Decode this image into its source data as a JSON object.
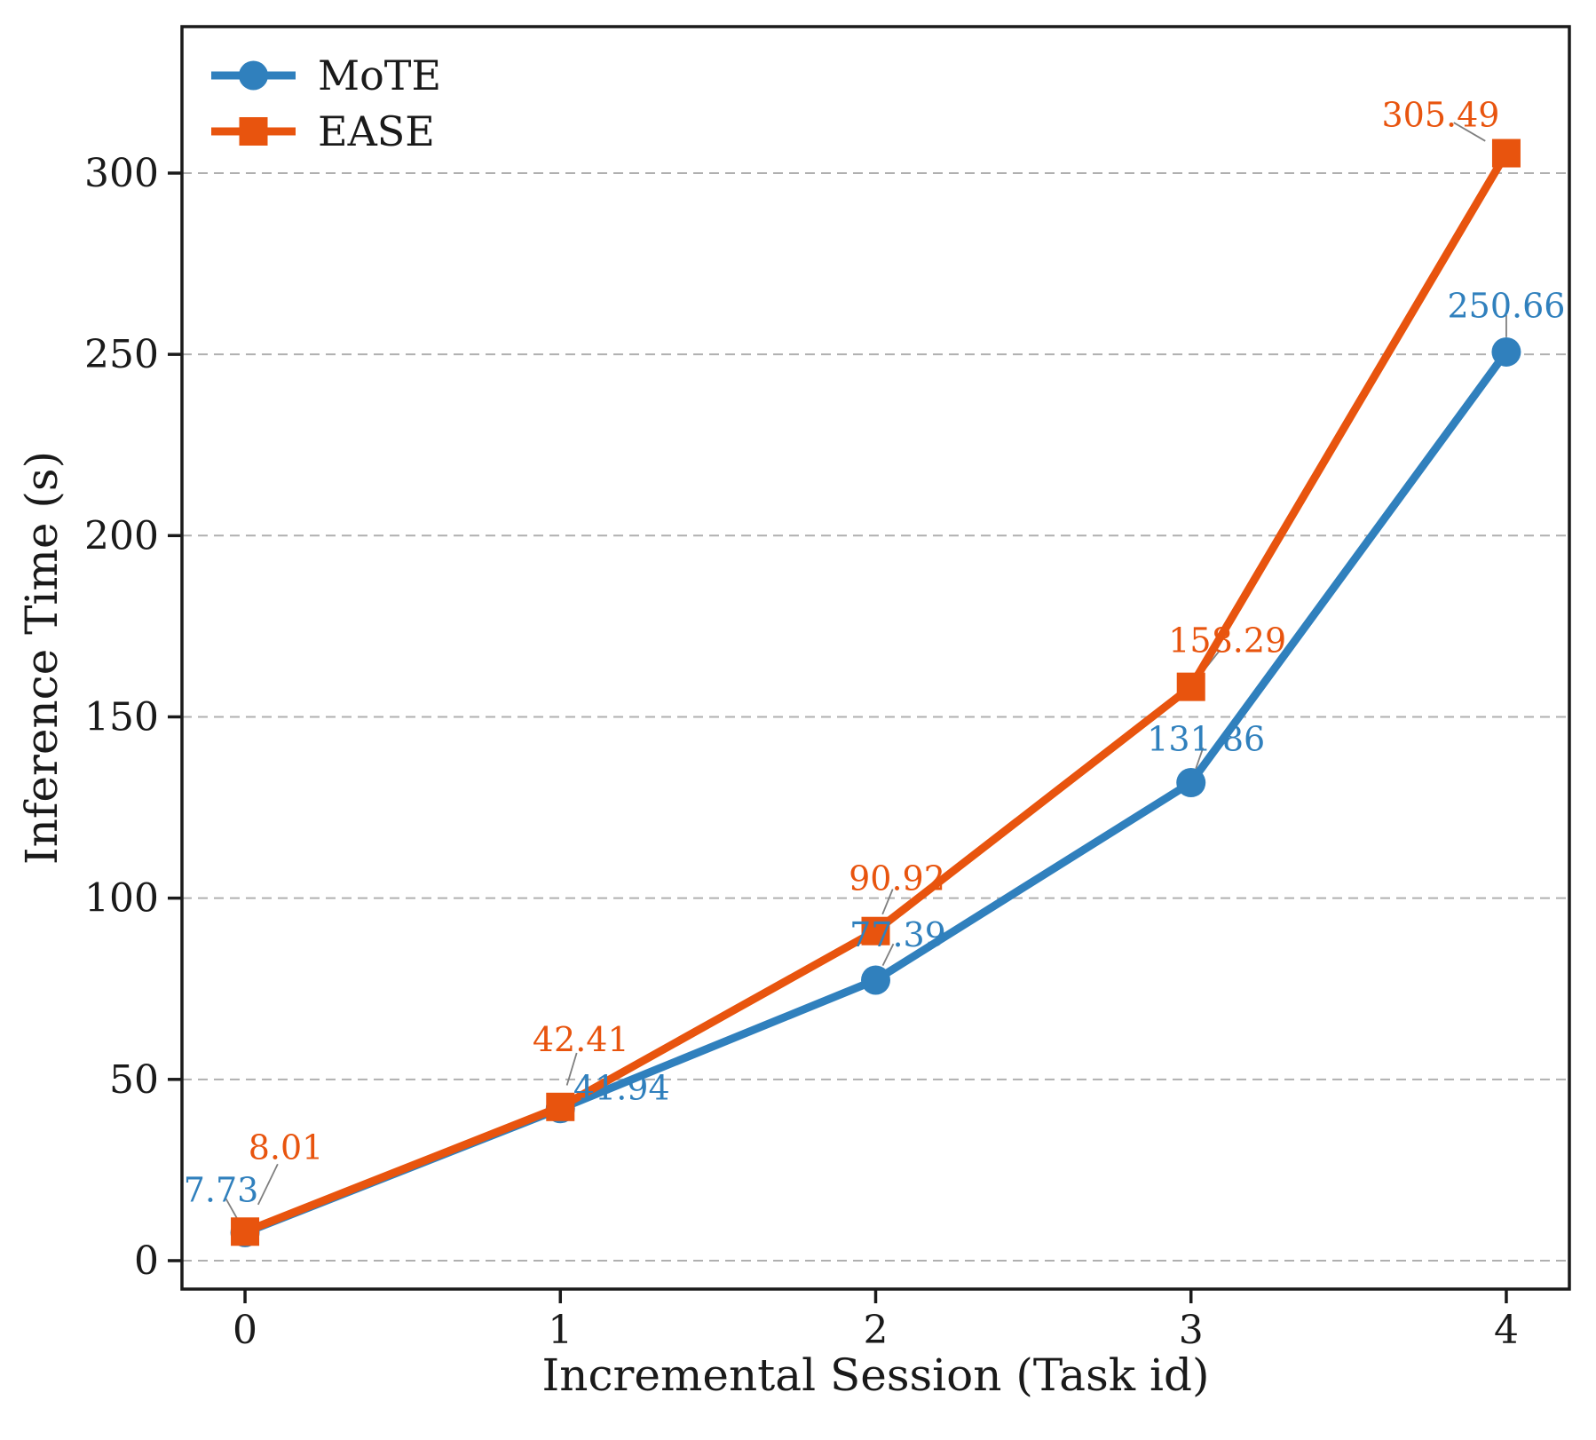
{
  "figure": {
    "background": "#ffffff"
  },
  "chart_data": {
    "type": "line",
    "title": "",
    "xlabel": "Incremental Session (Task id)",
    "ylabel": "Inference Time (s)",
    "x": [
      0,
      1,
      2,
      3,
      4
    ],
    "xtick_labels": [
      "0",
      "1",
      "2",
      "3",
      "4"
    ],
    "yticks": [
      0,
      50,
      100,
      150,
      200,
      250,
      300
    ],
    "xlim": [
      -0.2,
      4.2
    ],
    "ylim": [
      -7.84,
      340.4
    ],
    "grid": {
      "axis": "y",
      "style": "dashed",
      "color": "#b0b0b0"
    },
    "legend": {
      "position": "upper-left",
      "frame": false,
      "entries": [
        "MoTE",
        "EASE"
      ]
    },
    "series": [
      {
        "name": "MoTE",
        "color": "#3080bd",
        "marker": "circle",
        "values": [
          7.73,
          41.94,
          77.39,
          131.86,
          250.66
        ],
        "value_labels": [
          "7.73",
          "41.94",
          "77.39",
          "131.86",
          "250.66"
        ],
        "label_offsets": [
          [
            -27,
            -48
          ],
          [
            69,
            -23
          ],
          [
            25,
            -51
          ],
          [
            17,
            -49
          ],
          [
            0,
            -52
          ]
        ]
      },
      {
        "name": "EASE",
        "color": "#e8540e",
        "marker": "square",
        "values": [
          8.01,
          42.41,
          90.92,
          158.29,
          305.49
        ],
        "value_labels": [
          "8.01",
          "42.41",
          "90.92",
          "158.29",
          "305.49"
        ],
        "label_offsets": [
          [
            46,
            -95
          ],
          [
            23,
            -76
          ],
          [
            24,
            -59
          ],
          [
            41,
            -52
          ],
          [
            -74,
            -43
          ]
        ]
      }
    ],
    "axis_color": "#1a1a1a",
    "leader_line_color": "#7f7f7f"
  }
}
